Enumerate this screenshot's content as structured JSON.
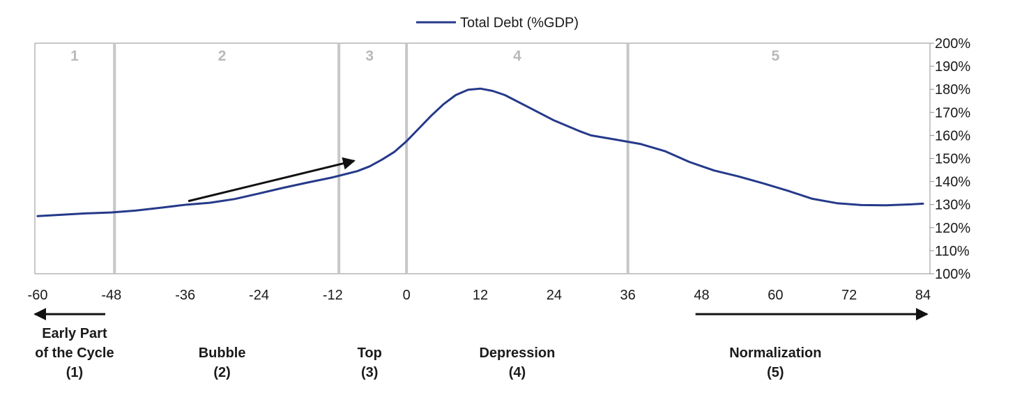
{
  "chart_data": {
    "type": "line",
    "legend": {
      "label": "Total Debt (%GDP)",
      "placement": "top-center",
      "color": "#25398a"
    },
    "series": [
      {
        "name": "Total Debt (%GDP)",
        "color": "#25398a",
        "points": [
          [
            -60,
            125
          ],
          [
            -56,
            125.6
          ],
          [
            -52,
            126.2
          ],
          [
            -48,
            126.6
          ],
          [
            -44,
            127.4
          ],
          [
            -40,
            128.6
          ],
          [
            -36,
            129.9
          ],
          [
            -32,
            130.8
          ],
          [
            -28,
            132.4
          ],
          [
            -24,
            134.8
          ],
          [
            -20,
            137.3
          ],
          [
            -16,
            139.6
          ],
          [
            -12,
            141.8
          ],
          [
            -8,
            144.5
          ],
          [
            -6,
            146.6
          ],
          [
            -4,
            149.5
          ],
          [
            -2,
            152.8
          ],
          [
            0,
            157.5
          ],
          [
            2,
            163
          ],
          [
            4,
            168.5
          ],
          [
            6,
            173.5
          ],
          [
            8,
            177.5
          ],
          [
            10,
            179.8
          ],
          [
            12,
            180.3
          ],
          [
            14,
            179.3
          ],
          [
            16,
            177.5
          ],
          [
            20,
            172
          ],
          [
            24,
            166.5
          ],
          [
            28,
            162
          ],
          [
            30,
            160
          ],
          [
            34,
            158.2
          ],
          [
            38,
            156.3
          ],
          [
            42,
            153.2
          ],
          [
            46,
            148.5
          ],
          [
            50,
            144.8
          ],
          [
            54,
            142.2
          ],
          [
            58,
            139.2
          ],
          [
            62,
            136
          ],
          [
            66,
            132.5
          ],
          [
            70,
            130.6
          ],
          [
            74,
            129.8
          ],
          [
            78,
            129.7
          ],
          [
            82,
            130.1
          ],
          [
            84,
            130.4
          ]
        ]
      }
    ],
    "x_ticks": [
      "-60",
      "-48",
      "-36",
      "-24",
      "-12",
      "0",
      "12",
      "24",
      "36",
      "48",
      "60",
      "72",
      "84"
    ],
    "y_ticks": [
      "100%",
      "110%",
      "120%",
      "130%",
      "140%",
      "150%",
      "160%",
      "170%",
      "180%",
      "190%",
      "200%"
    ],
    "xlim": [
      -60,
      84
    ],
    "ylim": [
      100,
      200
    ],
    "y_axis_side": "right",
    "grid": false,
    "phase_dividers": [
      -47.5,
      -11,
      0,
      36
    ],
    "divider_color": "#c4c8c8",
    "phases": [
      {
        "number": "1",
        "label_lines": [
          "Early Part",
          "of the Cycle",
          "(1)"
        ],
        "center_x": -54
      },
      {
        "number": "2",
        "label_lines": [
          "Bubble",
          "(2)"
        ],
        "center_x": -30
      },
      {
        "number": "3",
        "label_lines": [
          "Top",
          "(3)"
        ],
        "center_x": -6
      },
      {
        "number": "4",
        "label_lines": [
          "Depression",
          "(4)"
        ],
        "center_x": 18
      },
      {
        "number": "5",
        "label_lines": [
          "Normalization",
          "(5)"
        ],
        "center_x": 60
      }
    ],
    "annotations": [
      {
        "kind": "arrow",
        "from": [
          -35.5,
          131.5
        ],
        "to": [
          -8.5,
          149
        ]
      },
      {
        "kind": "arrow",
        "from": [
          -49,
          -1
        ],
        "to": [
          -60,
          -1
        ],
        "note": "below-axis arrow pointing left"
      },
      {
        "kind": "arrow",
        "from": [
          47,
          -1
        ],
        "to": [
          84,
          -1
        ],
        "note": "below-axis arrow pointing right"
      }
    ]
  }
}
